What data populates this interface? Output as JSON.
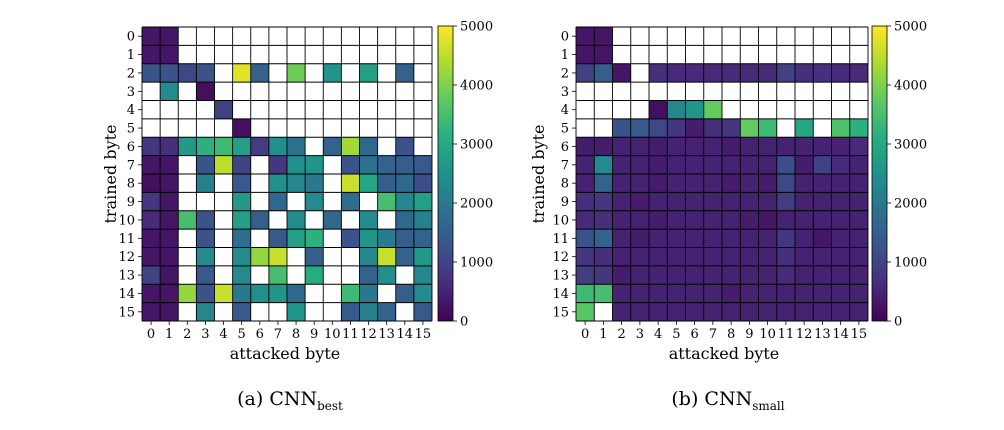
{
  "chart_data": [
    {
      "type": "heatmap",
      "panel": "a",
      "caption_prefix": "(a) CNN",
      "caption_sub": "best",
      "xlabel": "attacked byte",
      "ylabel": "trained byte",
      "x_categories": [
        "0",
        "1",
        "2",
        "3",
        "4",
        "5",
        "6",
        "7",
        "8",
        "9",
        "10",
        "11",
        "12",
        "13",
        "14",
        "15"
      ],
      "y_categories": [
        "0",
        "1",
        "2",
        "3",
        "4",
        "5",
        "6",
        "7",
        "8",
        "9",
        "10",
        "11",
        "12",
        "13",
        "14",
        "15"
      ],
      "colorbar": {
        "min": 0,
        "max": 5000,
        "ticks": [
          "0",
          "1000",
          "2000",
          "3000",
          "4000",
          "5000"
        ],
        "colormap": "viridis"
      },
      "missing_color": "#ffffff",
      "values": [
        [
          300,
          300,
          null,
          null,
          null,
          null,
          null,
          null,
          null,
          null,
          null,
          null,
          null,
          null,
          null,
          null
        ],
        [
          300,
          300,
          null,
          null,
          null,
          null,
          null,
          null,
          null,
          null,
          null,
          null,
          null,
          null,
          null,
          null
        ],
        [
          1300,
          1300,
          1100,
          1300,
          null,
          4800,
          1600,
          null,
          3900,
          null,
          2600,
          null,
          2800,
          null,
          1600,
          null
        ],
        [
          null,
          2400,
          null,
          200,
          null,
          null,
          null,
          null,
          null,
          null,
          null,
          null,
          null,
          null,
          null,
          null
        ],
        [
          null,
          null,
          null,
          null,
          1000,
          null,
          null,
          null,
          null,
          null,
          null,
          null,
          null,
          null,
          null,
          null
        ],
        [
          null,
          null,
          null,
          null,
          null,
          200,
          null,
          null,
          null,
          null,
          null,
          null,
          null,
          null,
          null,
          null
        ],
        [
          800,
          700,
          2700,
          3200,
          3400,
          2800,
          900,
          2500,
          1900,
          null,
          1600,
          4300,
          1700,
          null,
          1300,
          null
        ],
        [
          300,
          300,
          null,
          1300,
          4500,
          1000,
          null,
          800,
          2500,
          2600,
          null,
          1300,
          1900,
          1600,
          1500,
          1400
        ],
        [
          200,
          300,
          null,
          2200,
          null,
          1400,
          null,
          2500,
          2300,
          2000,
          null,
          4600,
          3000,
          1500,
          1700,
          1200
        ],
        [
          800,
          300,
          null,
          null,
          null,
          2700,
          null,
          1700,
          null,
          2400,
          null,
          1800,
          null,
          3500,
          2300,
          2800
        ],
        [
          600,
          300,
          3500,
          1300,
          null,
          2800,
          1500,
          null,
          2400,
          null,
          1700,
          null,
          2400,
          null,
          1700,
          2200
        ],
        [
          300,
          300,
          null,
          1300,
          null,
          1800,
          null,
          1400,
          2800,
          3200,
          null,
          1300,
          2600,
          2100,
          1500,
          1600
        ],
        [
          300,
          300,
          null,
          2400,
          null,
          2400,
          4200,
          4600,
          null,
          1500,
          null,
          null,
          2300,
          4600,
          1600,
          2700
        ],
        [
          1000,
          300,
          null,
          1400,
          null,
          2400,
          null,
          3500,
          null,
          3100,
          null,
          null,
          1600,
          2500,
          null,
          2300
        ],
        [
          300,
          300,
          4200,
          1300,
          4600,
          2000,
          2500,
          2600,
          1700,
          null,
          null,
          3400,
          2000,
          null,
          1500,
          2400
        ],
        [
          300,
          300,
          null,
          2300,
          null,
          1400,
          null,
          null,
          2600,
          null,
          null,
          1400,
          2200,
          1600,
          null,
          1400
        ]
      ]
    },
    {
      "type": "heatmap",
      "panel": "b",
      "caption_prefix": "(b) CNN",
      "caption_sub": "small",
      "xlabel": "attacked byte",
      "ylabel": "trained byte",
      "x_categories": [
        "0",
        "1",
        "2",
        "3",
        "4",
        "5",
        "6",
        "7",
        "8",
        "9",
        "10",
        "11",
        "12",
        "13",
        "14",
        "15"
      ],
      "y_categories": [
        "0",
        "1",
        "2",
        "3",
        "4",
        "5",
        "6",
        "7",
        "8",
        "9",
        "10",
        "11",
        "12",
        "13",
        "14",
        "15"
      ],
      "colorbar": {
        "min": 0,
        "max": 5000,
        "ticks": [
          "0",
          "1000",
          "2000",
          "3000",
          "4000",
          "5000"
        ],
        "colormap": "viridis"
      },
      "missing_color": "#ffffff",
      "values": [
        [
          300,
          300,
          null,
          null,
          null,
          null,
          null,
          null,
          null,
          null,
          null,
          null,
          null,
          null,
          null,
          null
        ],
        [
          300,
          300,
          null,
          null,
          null,
          null,
          null,
          null,
          null,
          null,
          null,
          null,
          null,
          null,
          null,
          null
        ],
        [
          1000,
          1500,
          300,
          null,
          700,
          600,
          600,
          600,
          600,
          600,
          600,
          1000,
          700,
          700,
          600,
          600
        ],
        [
          null,
          null,
          null,
          null,
          null,
          null,
          null,
          null,
          null,
          null,
          null,
          null,
          null,
          null,
          null,
          null
        ],
        [
          null,
          null,
          null,
          null,
          200,
          2300,
          2600,
          3800,
          null,
          null,
          null,
          null,
          null,
          null,
          null,
          null
        ],
        [
          null,
          null,
          1300,
          1400,
          1100,
          800,
          400,
          700,
          800,
          3800,
          3400,
          null,
          3000,
          null,
          3600,
          3200
        ],
        [
          400,
          400,
          500,
          500,
          400,
          500,
          500,
          500,
          400,
          500,
          500,
          500,
          500,
          500,
          500,
          600
        ],
        [
          500,
          2400,
          500,
          500,
          400,
          500,
          500,
          500,
          500,
          500,
          500,
          1200,
          400,
          1000,
          600,
          500
        ],
        [
          500,
          1600,
          500,
          500,
          400,
          500,
          500,
          500,
          400,
          500,
          400,
          1100,
          500,
          500,
          500,
          500
        ],
        [
          700,
          800,
          500,
          400,
          500,
          500,
          500,
          500,
          500,
          500,
          500,
          900,
          500,
          500,
          500,
          500
        ],
        [
          600,
          700,
          500,
          500,
          400,
          500,
          500,
          500,
          500,
          400,
          300,
          500,
          500,
          500,
          500,
          500
        ],
        [
          1300,
          1600,
          500,
          400,
          500,
          500,
          500,
          500,
          500,
          500,
          500,
          800,
          500,
          300,
          500,
          500
        ],
        [
          800,
          700,
          500,
          500,
          500,
          500,
          500,
          500,
          500,
          500,
          500,
          700,
          500,
          500,
          500,
          500
        ],
        [
          900,
          800,
          400,
          500,
          500,
          500,
          500,
          500,
          500,
          500,
          500,
          600,
          500,
          500,
          500,
          500
        ],
        [
          3400,
          3500,
          500,
          500,
          500,
          500,
          500,
          500,
          400,
          500,
          500,
          500,
          500,
          500,
          500,
          500
        ],
        [
          3700,
          null,
          500,
          500,
          500,
          500,
          500,
          500,
          500,
          500,
          500,
          500,
          500,
          500,
          500,
          500
        ]
      ]
    }
  ]
}
